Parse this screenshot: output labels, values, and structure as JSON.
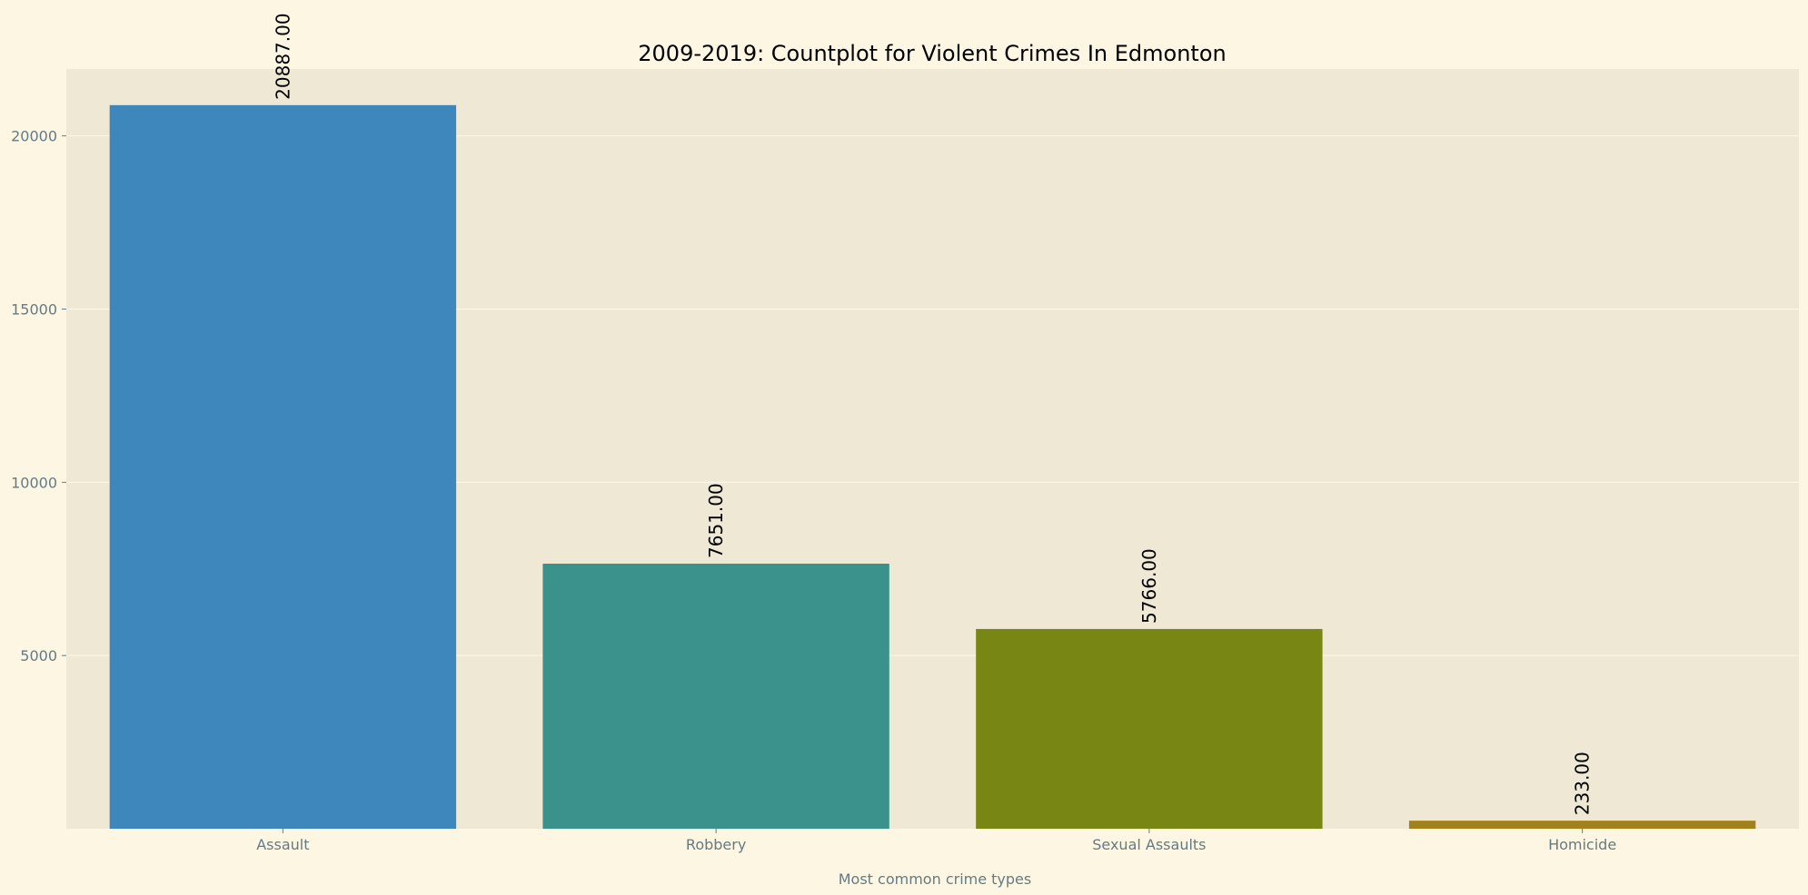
{
  "chart_data": {
    "type": "bar",
    "title": "2009-2019: Countplot for Violent Crimes In Edmonton",
    "xlabel": "Most common crime types",
    "ylabel": "",
    "categories": [
      "Assault",
      "Robbery",
      "Sexual Assaults",
      "Homicide"
    ],
    "values": [
      20887,
      7651,
      5766,
      233
    ],
    "data_labels": [
      "20887.00",
      "7651.00",
      "5766.00",
      "233.00"
    ],
    "y_ticks": [
      5000,
      10000,
      15000,
      20000
    ],
    "y_tick_labels": [
      "5000",
      "10000",
      "15000",
      "20000"
    ],
    "ylim": [
      0,
      21931
    ],
    "grid": true,
    "legend": "none",
    "colors": [
      "#3d87bd",
      "#3b928c",
      "#788614",
      "#a2811b"
    ],
    "background_color": "#fdf6e3",
    "plot_background_color": "#eee8d5",
    "grid_color": "#fdf6e3",
    "tick_color": "#657b83"
  }
}
